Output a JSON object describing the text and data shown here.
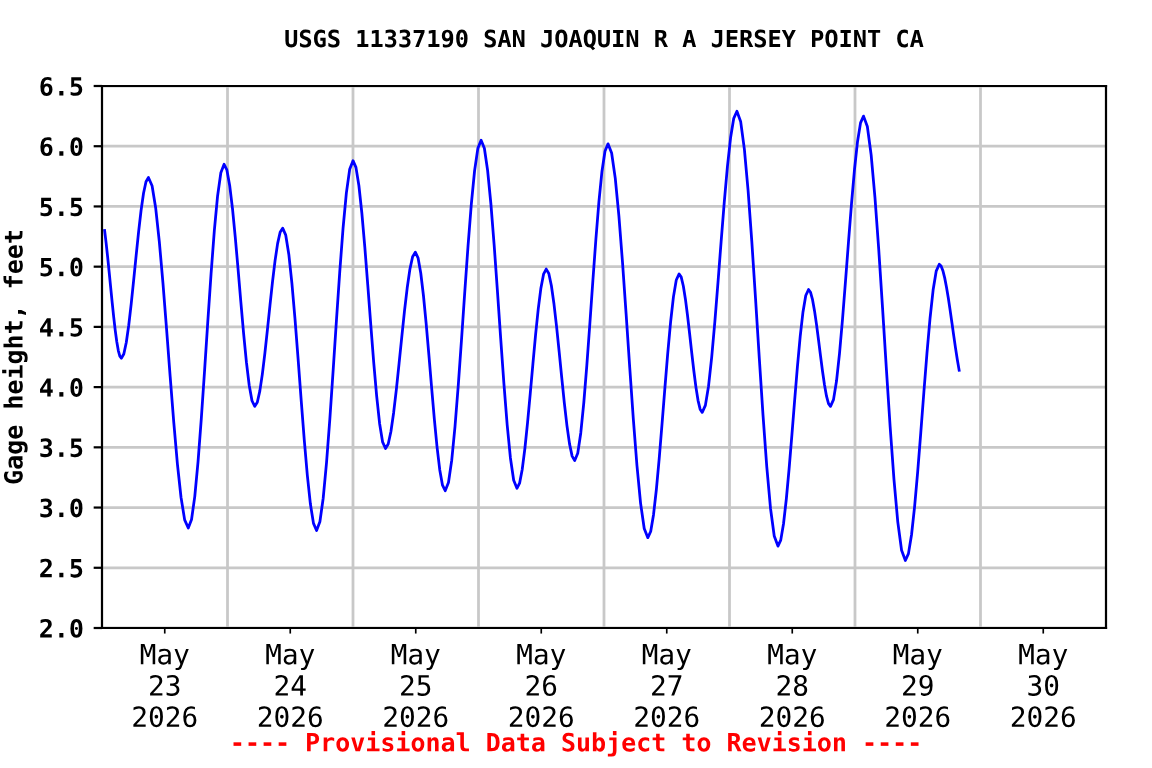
{
  "chart_data": {
    "type": "line",
    "title": "USGS 11337190 SAN JOAQUIN R A JERSEY POINT CA",
    "ylabel": "Gage height, feet",
    "annotations": [
      "---- Provisional Data Subject to Revision ----"
    ],
    "x": [
      "2026-05-23T00:30",
      "2026-05-23T03:42",
      "2026-05-23T08:53",
      "2026-05-23T16:30",
      "2026-05-23T23:21",
      "2026-05-24T05:13",
      "2026-05-24T10:33",
      "2026-05-24T17:02",
      "2026-05-25T00:00",
      "2026-05-25T06:13",
      "2026-05-25T11:55",
      "2026-05-25T17:38",
      "2026-05-26T00:30",
      "2026-05-26T07:21",
      "2026-05-26T12:57",
      "2026-05-26T18:24",
      "2026-05-27T00:46",
      "2026-05-27T08:23",
      "2026-05-27T14:22",
      "2026-05-27T18:47",
      "2026-05-28T01:25",
      "2026-05-28T09:16",
      "2026-05-28T15:07",
      "2026-05-28T19:19",
      "2026-05-29T01:38",
      "2026-05-29T09:38",
      "2026-05-29T16:07",
      "2026-05-29T19:55"
    ],
    "series": [
      {
        "color": "#0000ff",
        "values": [
          5.3,
          4.24,
          5.74,
          2.83,
          5.85,
          3.84,
          5.32,
          2.81,
          5.88,
          3.49,
          5.12,
          3.14,
          6.05,
          3.16,
          4.98,
          3.39,
          6.02,
          2.75,
          4.94,
          3.79,
          6.29,
          2.68,
          4.81,
          3.84,
          6.25,
          2.56,
          5.02,
          4.14
        ]
      }
    ],
    "xlim": [
      "2026-05-23T00:00",
      "2026-05-31T00:00"
    ],
    "xticks": [
      {
        "value": "2026-05-23T12:00",
        "label": "May\n23\n2026"
      },
      {
        "value": "2026-05-24T00:00",
        "label": null
      },
      {
        "value": "2026-05-24T12:00",
        "label": "May\n24\n2026"
      },
      {
        "value": "2026-05-25T00:00",
        "label": null
      },
      {
        "value": "2026-05-25T12:00",
        "label": "May\n25\n2026"
      },
      {
        "value": "2026-05-26T00:00",
        "label": null
      },
      {
        "value": "2026-05-26T12:00",
        "label": "May\n26\n2026"
      },
      {
        "value": "2026-05-27T00:00",
        "label": null
      },
      {
        "value": "2026-05-27T12:00",
        "label": "May\n27\n2026"
      },
      {
        "value": "2026-05-28T00:00",
        "label": null
      },
      {
        "value": "2026-05-28T12:00",
        "label": "May\n28\n2026"
      },
      {
        "value": "2026-05-29T00:00",
        "label": null
      },
      {
        "value": "2026-05-29T12:00",
        "label": "May\n29\n2026"
      },
      {
        "value": "2026-05-30T00:00",
        "label": null
      },
      {
        "value": "2026-05-30T12:00",
        "label": "May\n30\n2026"
      }
    ],
    "ylim": [
      2.0,
      6.5
    ],
    "yticks": [
      {
        "value": 2,
        "label": "2.0"
      },
      2.5,
      {
        "value": 3,
        "label": "3.0"
      },
      3.5,
      {
        "value": 4,
        "label": "4.0"
      },
      4.5,
      {
        "value": 5,
        "label": "5.0"
      },
      5.5,
      {
        "value": 6,
        "label": "6.0"
      },
      6.5
    ],
    "grid": true,
    "line_style": "solid",
    "marker": "none",
    "legend": false
  }
}
